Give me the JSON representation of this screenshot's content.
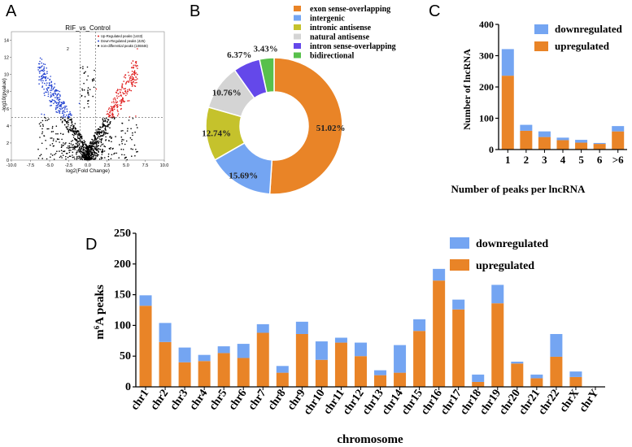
{
  "panels": {
    "a": "A",
    "b": "B",
    "c": "C",
    "d": "D"
  },
  "chart_data": [
    {
      "id": "A",
      "type": "scatter",
      "title": "RIF_vs_Control",
      "xlabel": "log2(Fold Change)",
      "ylabel": "-log10(pvalue)",
      "xlim": [
        -10,
        10
      ],
      "ylim": [
        0,
        15
      ],
      "xticks": [
        "-10.0",
        "-7.5",
        "-5.0",
        "-2.5",
        "0.0",
        "2.5",
        "5.0",
        "7.5",
        "10.0"
      ],
      "yticks": [
        "0",
        "2",
        "4",
        "6",
        "8",
        "10",
        "12",
        "14"
      ],
      "legend": [
        "Up-Regulated peaks (1443)",
        "Down-Regulated peaks (425)",
        "non-differential peaks (106846)"
      ],
      "series_colors": {
        "up": "#e02020",
        "down": "#2040d0",
        "ns": "#000000"
      },
      "thresholds": {
        "x": [
          -1,
          1
        ],
        "y": 5
      },
      "stray_label": "2",
      "legend_position": "top-right"
    },
    {
      "id": "B",
      "type": "pie",
      "labels": [
        "exon sense-overlapping",
        "intergenic",
        "intronic antisense",
        "natural antisense",
        "intron sense-overlapping",
        "bidirectional"
      ],
      "values": [
        51.02,
        15.69,
        12.74,
        10.76,
        6.37,
        3.43
      ],
      "value_labels": [
        "51.02%",
        "15.69%",
        "12.74%",
        "10.76%",
        "6.37%",
        "3.43%"
      ],
      "colors": [
        "#e98427",
        "#74a5f2",
        "#c5c22c",
        "#d4d4d4",
        "#6448ea",
        "#58c04b"
      ],
      "legend_position": "top-right"
    },
    {
      "id": "C",
      "type": "bar",
      "stacked": true,
      "categories": [
        "1",
        "2",
        "3",
        "4",
        "5",
        "6",
        ">6"
      ],
      "series": [
        {
          "name": "upregulated",
          "color": "#e98427",
          "values": [
            236,
            60,
            40,
            30,
            22,
            18,
            58
          ]
        },
        {
          "name": "downregulated",
          "color": "#74a5f2",
          "values": [
            85,
            19,
            18,
            8,
            9,
            3,
            17
          ]
        }
      ],
      "xlabel": "Number of peaks per lncRNA",
      "ylabel": "Number of lncRNA",
      "ylim": [
        0,
        400
      ],
      "yticks": [
        "0",
        "100",
        "200",
        "300",
        "400"
      ],
      "legend": [
        "downregulated",
        "upregulated"
      ],
      "legend_position": "top-right"
    },
    {
      "id": "D",
      "type": "bar",
      "stacked": true,
      "categories": [
        "chr1",
        "chr2",
        "chr3",
        "chr4",
        "chr5",
        "chr6",
        "chr7",
        "chr8",
        "chr9",
        "chr10",
        "chr11",
        "chr12",
        "chr13",
        "chr14",
        "chr15",
        "chr16",
        "chr17",
        "chr18",
        "chr19",
        "chr20",
        "chr21",
        "chr22",
        "chrX",
        "chrY"
      ],
      "series": [
        {
          "name": "upregulated",
          "color": "#e98427",
          "values": [
            132,
            73,
            40,
            42,
            55,
            47,
            88,
            23,
            86,
            44,
            72,
            50,
            19,
            23,
            91,
            173,
            126,
            8,
            136,
            38,
            14,
            49,
            16,
            0
          ]
        },
        {
          "name": "downregulated",
          "color": "#74a5f2",
          "values": [
            17,
            31,
            24,
            10,
            11,
            23,
            14,
            11,
            20,
            30,
            8,
            22,
            8,
            45,
            19,
            19,
            16,
            12,
            30,
            3,
            6,
            37,
            9,
            0
          ]
        }
      ],
      "xlabel": "chromosome",
      "ylabel_main": "m",
      "ylabel_sup": "6",
      "ylabel_rest": "A peaks",
      "ylim": [
        0,
        250
      ],
      "yticks": [
        "0",
        "50",
        "100",
        "150",
        "200",
        "250"
      ],
      "legend": [
        "downregulated",
        "upregulated"
      ],
      "legend_position": "top-right"
    }
  ]
}
